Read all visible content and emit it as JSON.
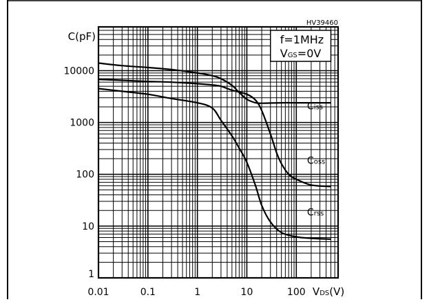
{
  "chart_data": {
    "type": "line",
    "code": "HV39460",
    "ylabel": "C(pF)",
    "xlabel_main": "V",
    "xlabel_sub": "DS",
    "xlabel_unit": "(V)",
    "condition_1": "f=1MHz",
    "condition_2_main": "V",
    "condition_2_sub": "GS",
    "condition_2_rest": "=0V",
    "x_scale": "log",
    "y_scale": "log",
    "xlim": [
      0.01,
      700
    ],
    "ylim": [
      1,
      70000
    ],
    "grid": true,
    "x_ticks": [
      {
        "value": 0.01,
        "label": "0.01"
      },
      {
        "value": 0.1,
        "label": "0.1"
      },
      {
        "value": 1,
        "label": "1"
      },
      {
        "value": 10,
        "label": "10"
      },
      {
        "value": 100,
        "label": "100"
      }
    ],
    "y_ticks": [
      {
        "value": 1,
        "label": "1"
      },
      {
        "value": 10,
        "label": "10"
      },
      {
        "value": 100,
        "label": "100"
      },
      {
        "value": 1000,
        "label": "1000"
      },
      {
        "value": 10000,
        "label": "10000"
      }
    ],
    "series": [
      {
        "name_main": "C",
        "name_sub": "iss",
        "label_anchor": [
          200,
          1700
        ],
        "points": [
          [
            0.01,
            14000
          ],
          [
            0.03,
            12500
          ],
          [
            0.1,
            11500
          ],
          [
            0.3,
            10500
          ],
          [
            1,
            9000
          ],
          [
            2,
            8000
          ],
          [
            3,
            7000
          ],
          [
            5,
            5200
          ],
          [
            7,
            3800
          ],
          [
            10,
            2800
          ],
          [
            15,
            2400
          ],
          [
            20,
            2350
          ],
          [
            50,
            2400
          ],
          [
            100,
            2400
          ],
          [
            500,
            2400
          ]
        ]
      },
      {
        "name_main": "C",
        "name_sub": "oss",
        "label_anchor": [
          200,
          150
        ],
        "points": [
          [
            0.01,
            6800
          ],
          [
            0.03,
            6500
          ],
          [
            0.1,
            6200
          ],
          [
            0.3,
            6000
          ],
          [
            1,
            5600
          ],
          [
            2,
            5300
          ],
          [
            3,
            5000
          ],
          [
            5,
            4200
          ],
          [
            10,
            3500
          ],
          [
            15,
            2700
          ],
          [
            20,
            1700
          ],
          [
            30,
            600
          ],
          [
            40,
            260
          ],
          [
            50,
            160
          ],
          [
            70,
            100
          ],
          [
            100,
            80
          ],
          [
            200,
            62
          ],
          [
            500,
            58
          ]
        ]
      },
      {
        "name_main": "C",
        "name_sub": "rss",
        "label_anchor": [
          200,
          15
        ],
        "points": [
          [
            0.01,
            4500
          ],
          [
            0.03,
            4000
          ],
          [
            0.1,
            3500
          ],
          [
            0.3,
            2900
          ],
          [
            1,
            2400
          ],
          [
            2,
            1900
          ],
          [
            3,
            1100
          ],
          [
            5,
            550
          ],
          [
            7,
            320
          ],
          [
            10,
            170
          ],
          [
            15,
            60
          ],
          [
            20,
            25
          ],
          [
            30,
            12
          ],
          [
            50,
            7.5
          ],
          [
            100,
            6.2
          ],
          [
            200,
            5.8
          ],
          [
            500,
            5.6
          ]
        ]
      }
    ]
  }
}
